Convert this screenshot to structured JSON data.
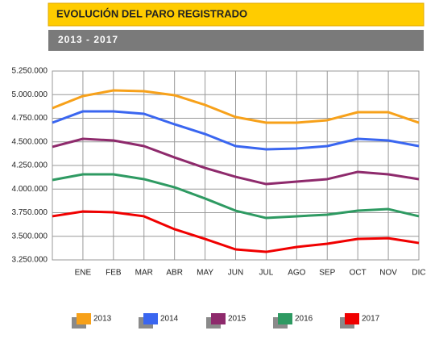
{
  "chart_data": {
    "type": "line",
    "title": "EVOLUCIÓN DEL PARO REGISTRADO",
    "subtitle": "2013 - 2017",
    "categories": [
      null,
      "ENE",
      "FEB",
      "MAR",
      "ABR",
      "MAY",
      "JUN",
      "JUL",
      "AGO",
      "SEP",
      "OCT",
      "NOV",
      "DIC"
    ],
    "ylim": [
      3250000,
      5250000
    ],
    "yticks": [
      {
        "value": 3250000,
        "label": "3.250.000"
      },
      {
        "value": 3500000,
        "label": "3.500.000"
      },
      {
        "value": 3750000,
        "label": "3.750.000"
      },
      {
        "value": 4000000,
        "label": "4.000.000"
      },
      {
        "value": 4250000,
        "label": "4.250.000"
      },
      {
        "value": 4500000,
        "label": "4.500.000"
      },
      {
        "value": 4750000,
        "label": "4.750.000"
      },
      {
        "value": 5000000,
        "label": "5.000.000"
      },
      {
        "value": 5250000,
        "label": "5.250.000"
      }
    ],
    "grid": true,
    "legend": "bottom",
    "series": [
      {
        "name": "2013",
        "color": "#f7a11a",
        "values": [
          4857000,
          4985000,
          5045000,
          5036000,
          4994000,
          4891000,
          4763000,
          4703000,
          4703000,
          4729000,
          4814000,
          4814000,
          4703000
        ]
      },
      {
        "name": "2014",
        "color": "#3a66f0",
        "values": [
          4703000,
          4823000,
          4823000,
          4797000,
          4686000,
          4583000,
          4455000,
          4421000,
          4430000,
          4455000,
          4532000,
          4515000,
          4455000
        ]
      },
      {
        "name": "2015",
        "color": "#8e2a6c",
        "values": [
          4447000,
          4532000,
          4515000,
          4455000,
          4335000,
          4224000,
          4130000,
          4053000,
          4079000,
          4105000,
          4182000,
          4156000,
          4105000
        ]
      },
      {
        "name": "2016",
        "color": "#2e9a62",
        "values": [
          4096000,
          4156000,
          4156000,
          4105000,
          4019000,
          3900000,
          3771000,
          3694000,
          3712000,
          3729000,
          3771000,
          3788000,
          3712000
        ]
      },
      {
        "name": "2017",
        "color": "#f00000",
        "values": [
          3712000,
          3763000,
          3754000,
          3712000,
          3575000,
          3472000,
          3361000,
          3335000,
          3387000,
          3421000,
          3472000,
          3480000,
          3429000
        ]
      }
    ]
  }
}
